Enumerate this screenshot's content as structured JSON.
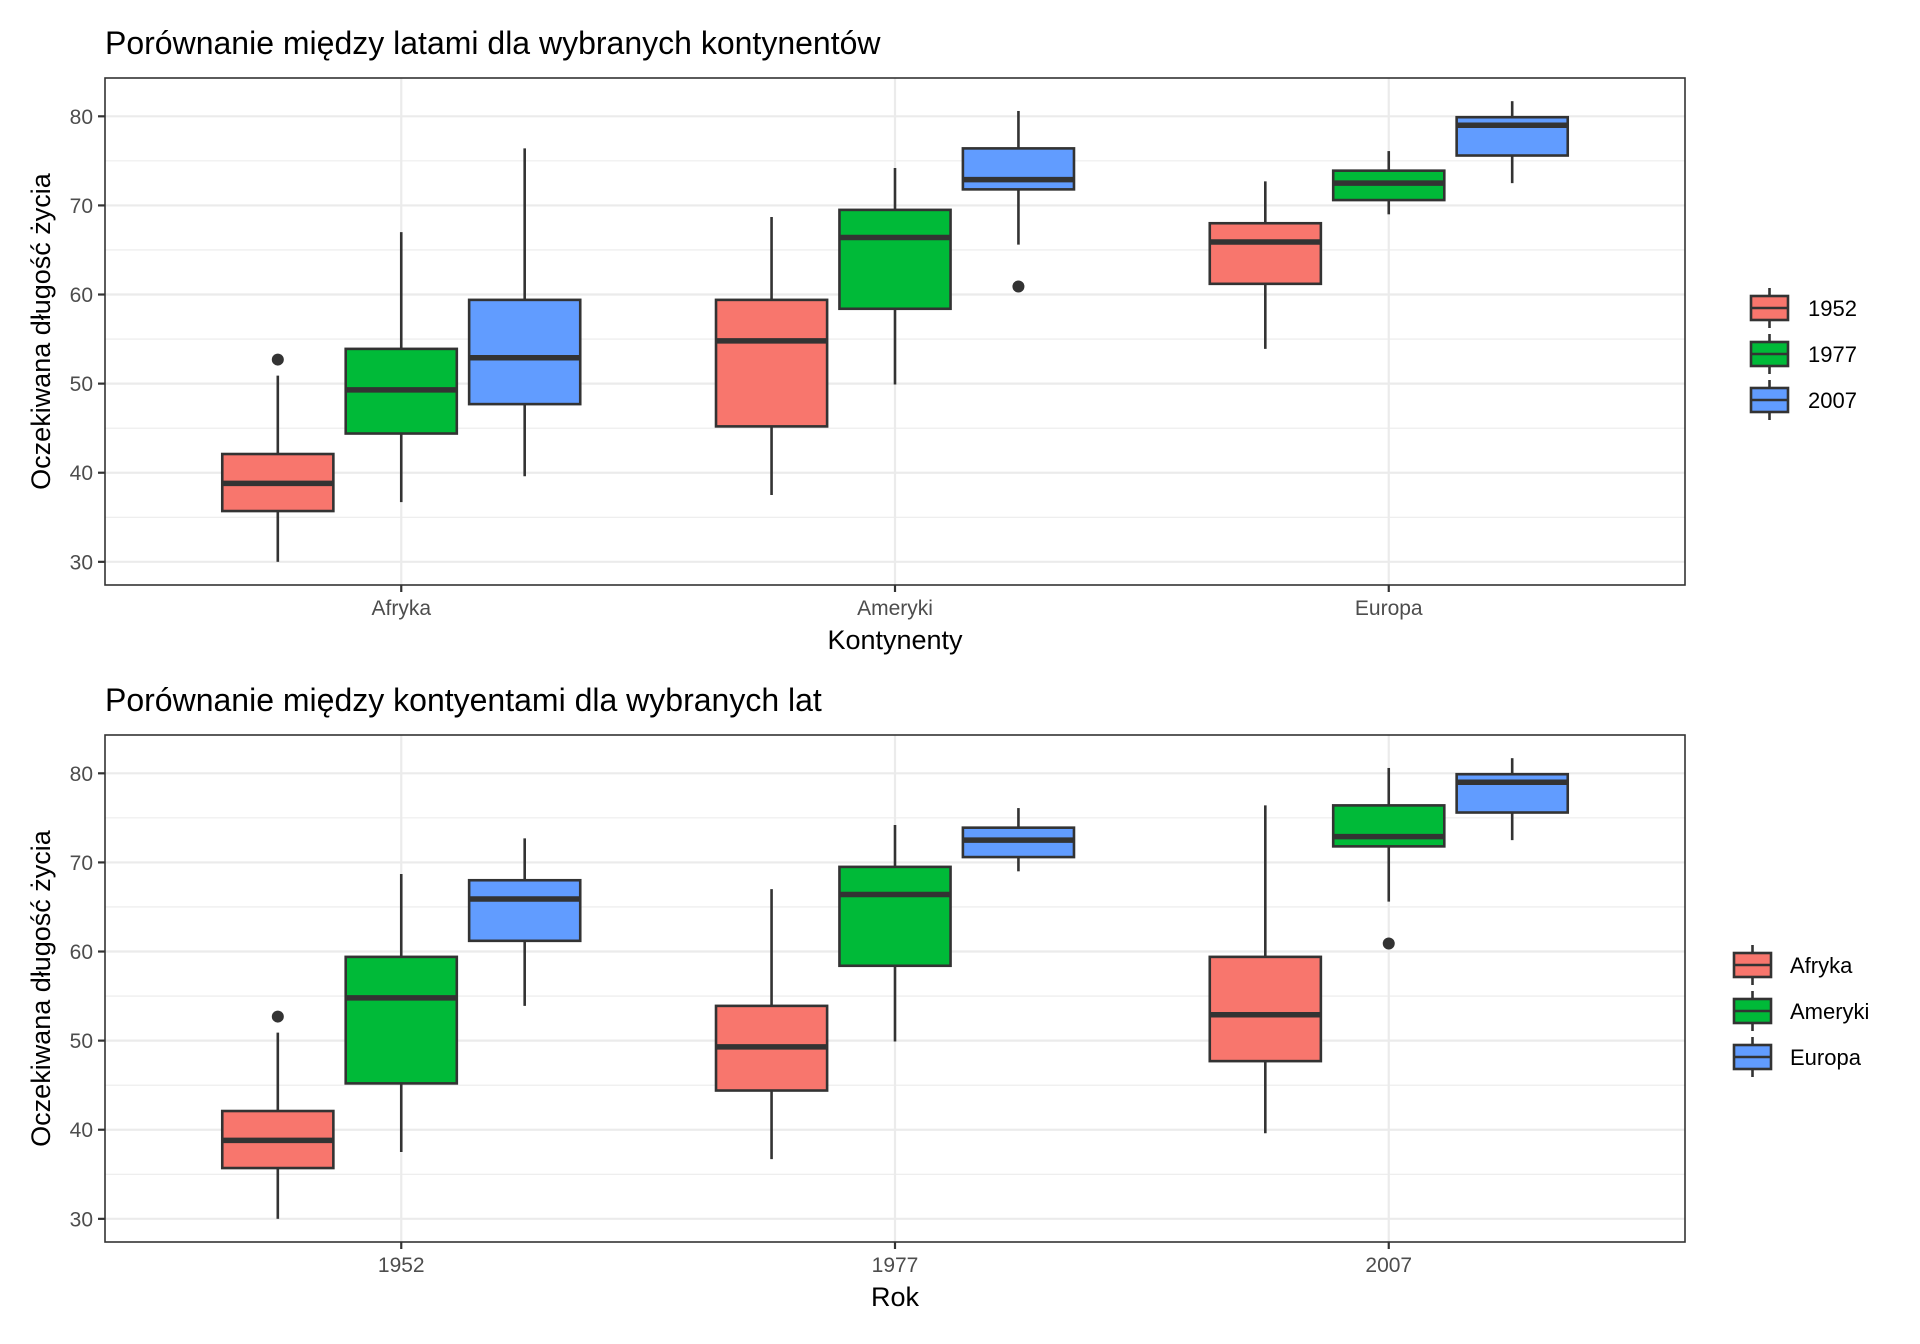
{
  "chart_data": [
    {
      "type": "boxplot",
      "title": "Porównanie między latami dla wybranych kontynentów",
      "xlabel": "Kontynenty",
      "ylabel": "Oczekiwana długość życia",
      "categories": [
        "Afryka",
        "Ameryki",
        "Europa"
      ],
      "ylim": [
        27.4,
        84.3
      ],
      "yticks": [
        30,
        40,
        50,
        60,
        70,
        80
      ],
      "grid": true,
      "legend": {
        "position": "right",
        "title": "",
        "entries": [
          "1952",
          "1977",
          "2007"
        ]
      },
      "series": [
        {
          "name": "1952",
          "color": "#F8766D",
          "boxes": [
            {
              "category": "Afryka",
              "whisker_low": 30.0,
              "q1": 35.7,
              "median": 38.8,
              "q3": 42.1,
              "whisker_high": 50.9,
              "outliers": [
                52.7
              ]
            },
            {
              "category": "Ameryki",
              "whisker_low": 37.5,
              "q1": 45.2,
              "median": 54.8,
              "q3": 59.4,
              "whisker_high": 68.7,
              "outliers": []
            },
            {
              "category": "Europa",
              "whisker_low": 53.9,
              "q1": 61.2,
              "median": 65.9,
              "q3": 68.0,
              "whisker_high": 72.7,
              "outliers": []
            }
          ]
        },
        {
          "name": "1977",
          "color": "#00BA38",
          "boxes": [
            {
              "category": "Afryka",
              "whisker_low": 36.7,
              "q1": 44.4,
              "median": 49.3,
              "q3": 53.9,
              "whisker_high": 67.0,
              "outliers": []
            },
            {
              "category": "Ameryki",
              "whisker_low": 49.9,
              "q1": 58.4,
              "median": 66.4,
              "q3": 69.5,
              "whisker_high": 74.2,
              "outliers": []
            },
            {
              "category": "Europa",
              "whisker_low": 69.0,
              "q1": 70.6,
              "median": 72.5,
              "q3": 73.9,
              "whisker_high": 76.1,
              "outliers": []
            }
          ]
        },
        {
          "name": "2007",
          "color": "#619CFF",
          "boxes": [
            {
              "category": "Afryka",
              "whisker_low": 39.6,
              "q1": 47.7,
              "median": 52.9,
              "q3": 59.4,
              "whisker_high": 76.4,
              "outliers": []
            },
            {
              "category": "Ameryki",
              "whisker_low": 65.6,
              "q1": 71.8,
              "median": 72.9,
              "q3": 76.4,
              "whisker_high": 80.6,
              "outliers": [
                60.9
              ]
            },
            {
              "category": "Europa",
              "whisker_low": 72.5,
              "q1": 75.6,
              "median": 79.0,
              "q3": 79.9,
              "whisker_high": 81.7,
              "outliers": []
            }
          ]
        }
      ]
    },
    {
      "type": "boxplot",
      "title": "Porównanie między kontyentami dla wybranych lat",
      "xlabel": "Rok",
      "ylabel": "Oczekiwana długość życia",
      "categories": [
        "1952",
        "1977",
        "2007"
      ],
      "ylim": [
        27.4,
        84.3
      ],
      "yticks": [
        30,
        40,
        50,
        60,
        70,
        80
      ],
      "grid": true,
      "legend": {
        "position": "right",
        "title": "",
        "entries": [
          "Afryka",
          "Ameryki",
          "Europa"
        ]
      },
      "series": [
        {
          "name": "Afryka",
          "color": "#F8766D",
          "boxes": [
            {
              "category": "1952",
              "whisker_low": 30.0,
              "q1": 35.7,
              "median": 38.8,
              "q3": 42.1,
              "whisker_high": 50.9,
              "outliers": [
                52.7
              ]
            },
            {
              "category": "1977",
              "whisker_low": 36.7,
              "q1": 44.4,
              "median": 49.3,
              "q3": 53.9,
              "whisker_high": 67.0,
              "outliers": []
            },
            {
              "category": "2007",
              "whisker_low": 39.6,
              "q1": 47.7,
              "median": 52.9,
              "q3": 59.4,
              "whisker_high": 76.4,
              "outliers": []
            }
          ]
        },
        {
          "name": "Ameryki",
          "color": "#00BA38",
          "boxes": [
            {
              "category": "1952",
              "whisker_low": 37.5,
              "q1": 45.2,
              "median": 54.8,
              "q3": 59.4,
              "whisker_high": 68.7,
              "outliers": []
            },
            {
              "category": "1977",
              "whisker_low": 49.9,
              "q1": 58.4,
              "median": 66.4,
              "q3": 69.5,
              "whisker_high": 74.2,
              "outliers": []
            },
            {
              "category": "2007",
              "whisker_low": 65.6,
              "q1": 71.8,
              "median": 72.9,
              "q3": 76.4,
              "whisker_high": 80.6,
              "outliers": [
                60.9
              ]
            }
          ]
        },
        {
          "name": "Europa",
          "color": "#619CFF",
          "boxes": [
            {
              "category": "1952",
              "whisker_low": 53.9,
              "q1": 61.2,
              "median": 65.9,
              "q3": 68.0,
              "whisker_high": 72.7,
              "outliers": []
            },
            {
              "category": "1977",
              "whisker_low": 69.0,
              "q1": 70.6,
              "median": 72.5,
              "q3": 73.9,
              "whisker_high": 76.1,
              "outliers": []
            },
            {
              "category": "2007",
              "whisker_low": 72.5,
              "q1": 75.6,
              "median": 79.0,
              "q3": 79.9,
              "whisker_high": 81.7,
              "outliers": []
            }
          ]
        }
      ]
    }
  ]
}
